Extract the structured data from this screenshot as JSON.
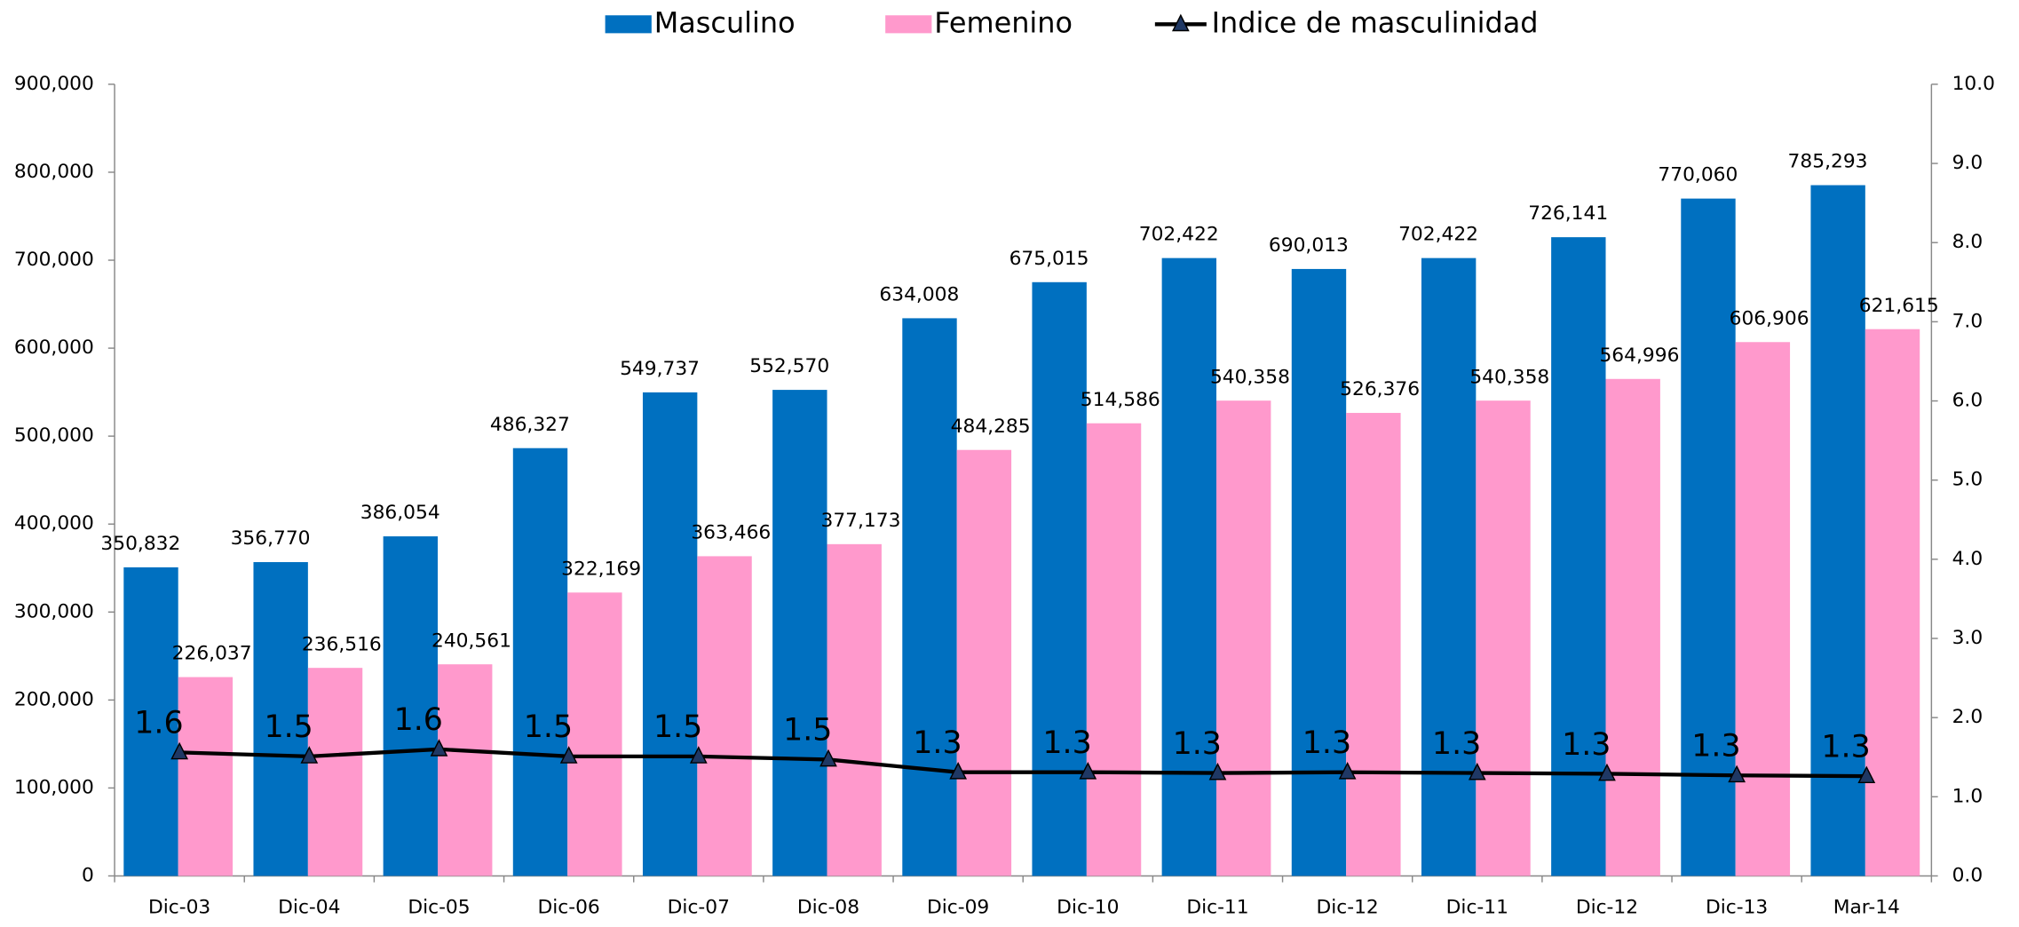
{
  "chart_data": {
    "type": "bar",
    "categories": [
      "Dic-03",
      "Dic-04",
      "Dic-05",
      "Dic-06",
      "Dic-07",
      "Dic-08",
      "Dic-09",
      "Dic-10",
      "Dic-11",
      "Dic-12",
      "Dic-11",
      "Dic-12",
      "Dic-13",
      "Mar-14"
    ],
    "series": [
      {
        "name": "Masculino",
        "color": "#0070c0",
        "type": "bar",
        "values": [
          350832,
          356770,
          386054,
          486327,
          549737,
          552570,
          634008,
          675015,
          702422,
          690013,
          702422,
          726141,
          770060,
          785293
        ],
        "value_labels": [
          "350,832",
          "356,770",
          "386,054",
          "486,327",
          "549,737",
          "552,570",
          "634,008",
          "675,015",
          "702,422",
          "690,013",
          "702,422",
          "726,141",
          "770,060",
          "785,293"
        ]
      },
      {
        "name": "Femenino",
        "color": "#ff99cc",
        "type": "bar",
        "values": [
          226037,
          236516,
          240561,
          322169,
          363466,
          377173,
          484285,
          514586,
          540358,
          526376,
          540358,
          564996,
          606906,
          621615
        ],
        "value_labels": [
          "226,037",
          "236,516",
          "240,561",
          "322,169",
          "363,466",
          "377,173",
          "484,285",
          "514,586",
          "540,358",
          "526,376",
          "540,358",
          "564,996",
          "606,906",
          "621,615"
        ]
      },
      {
        "name": "Indice de masculinidad",
        "color": "#000000",
        "type": "line",
        "axis": "y2",
        "values": [
          1.56,
          1.51,
          1.6,
          1.51,
          1.51,
          1.47,
          1.31,
          1.31,
          1.3,
          1.31,
          1.3,
          1.29,
          1.27,
          1.26
        ],
        "value_labels": [
          "1.6",
          "1.5",
          "1.6",
          "1.5",
          "1.5",
          "1.5",
          "1.3",
          "1.3",
          "1.3",
          "1.3",
          "1.3",
          "1.3",
          "1.3",
          "1.3"
        ]
      }
    ],
    "ylim": [
      0,
      900000
    ],
    "yticks": [
      0,
      {
        "value": 100000,
        "label": "100,000"
      },
      {
        "value": 200000,
        "label": "200,000"
      },
      {
        "value": 300000,
        "label": "300,000"
      },
      {
        "value": 400000,
        "label": "400,000"
      },
      {
        "value": 500000,
        "label": "500,000"
      },
      {
        "value": 600000,
        "label": "600,000"
      },
      {
        "value": 700000,
        "label": "700,000"
      },
      {
        "value": 800000,
        "label": "800,000"
      },
      {
        "value": 900000,
        "label": "900,000"
      }
    ],
    "y2lim": [
      0,
      10
    ],
    "y2ticks": [
      {
        "value": 0,
        "label": "0.0"
      },
      {
        "value": 1,
        "label": "1.0"
      },
      {
        "value": 2,
        "label": "2.0"
      },
      {
        "value": 3,
        "label": "3.0"
      },
      {
        "value": 4,
        "label": "4.0"
      },
      {
        "value": 5,
        "label": "5.0"
      },
      {
        "value": 6,
        "label": "6.0"
      },
      {
        "value": 7,
        "label": "7.0"
      },
      {
        "value": 8,
        "label": "8.0"
      },
      {
        "value": 9,
        "label": "9.0"
      },
      {
        "value": 10,
        "label": "10.0"
      }
    ],
    "legend": "top",
    "grid": false
  }
}
